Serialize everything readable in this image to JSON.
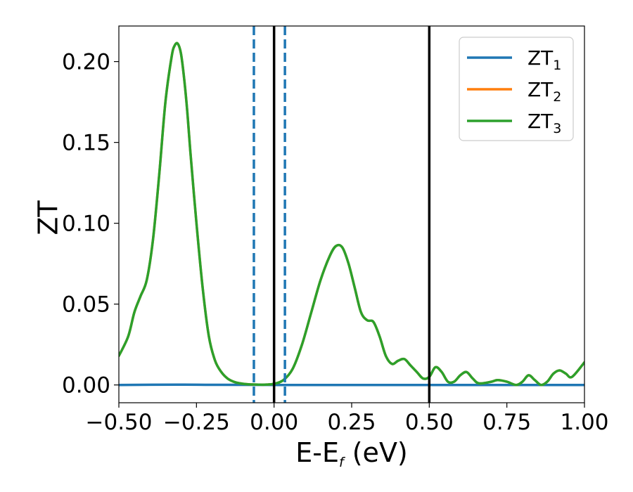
{
  "chart_data": {
    "type": "line",
    "title": "",
    "xlabel": {
      "main": "E-E",
      "sub": "f",
      "suffix": " (eV)"
    },
    "ylabel": "ZT",
    "xlim": [
      -0.5,
      1.0
    ],
    "ylim": [
      -0.011,
      0.222
    ],
    "grid": false,
    "legend_position": "top-right",
    "x_ticks": [
      {
        "value": -0.5,
        "label": "−0.50"
      },
      {
        "value": -0.25,
        "label": "−0.25"
      },
      {
        "value": 0.0,
        "label": "0.00"
      },
      {
        "value": 0.25,
        "label": "0.25"
      },
      {
        "value": 0.5,
        "label": "0.50"
      },
      {
        "value": 0.75,
        "label": "0.75"
      },
      {
        "value": 1.0,
        "label": "1.00"
      }
    ],
    "y_ticks": [
      {
        "value": 0.0,
        "label": "0.00"
      },
      {
        "value": 0.05,
        "label": "0.05"
      },
      {
        "value": 0.1,
        "label": "0.10"
      },
      {
        "value": 0.15,
        "label": "0.15"
      },
      {
        "value": 0.2,
        "label": "0.20"
      }
    ],
    "series": [
      {
        "name": "ZT",
        "sub": "1",
        "color": "#1f77b4",
        "x": [
          -0.5,
          -0.3,
          -0.2,
          0.0,
          0.5,
          1.0
        ],
        "y": [
          0.0,
          0.0002,
          0.0001,
          0.0,
          0.0,
          0.0
        ]
      },
      {
        "name": "ZT",
        "sub": "2",
        "color": "#ff7f0e",
        "x": [
          -0.5,
          -0.47,
          -0.45,
          -0.43,
          -0.41,
          -0.39,
          -0.37,
          -0.35,
          -0.33,
          -0.32,
          -0.31,
          -0.3,
          -0.29,
          -0.28,
          -0.27,
          -0.25,
          -0.23,
          -0.21,
          -0.19,
          -0.17,
          -0.15,
          -0.13,
          -0.11,
          -0.09,
          -0.07,
          -0.05,
          -0.03,
          0.0,
          0.03,
          0.06,
          0.09,
          0.12,
          0.15,
          0.18,
          0.2,
          0.22,
          0.24,
          0.26,
          0.28,
          0.3,
          0.32,
          0.34,
          0.36,
          0.38,
          0.4,
          0.42,
          0.44,
          0.46,
          0.48,
          0.5,
          0.52,
          0.54,
          0.56,
          0.58,
          0.6,
          0.62,
          0.64,
          0.66,
          0.7,
          0.72,
          0.75,
          0.78,
          0.8,
          0.82,
          0.84,
          0.86,
          0.88,
          0.9,
          0.92,
          0.94,
          0.96,
          1.0
        ],
        "y": [
          0.018,
          0.03,
          0.045,
          0.055,
          0.065,
          0.09,
          0.13,
          0.175,
          0.203,
          0.21,
          0.211,
          0.205,
          0.19,
          0.17,
          0.145,
          0.1,
          0.06,
          0.03,
          0.015,
          0.008,
          0.004,
          0.002,
          0.001,
          0.0005,
          0.0003,
          0.0002,
          0.0002,
          0.0007,
          0.003,
          0.01,
          0.025,
          0.045,
          0.065,
          0.08,
          0.086,
          0.085,
          0.075,
          0.06,
          0.045,
          0.04,
          0.039,
          0.03,
          0.018,
          0.013,
          0.015,
          0.016,
          0.012,
          0.008,
          0.004,
          0.005,
          0.011,
          0.008,
          0.002,
          0.002,
          0.006,
          0.008,
          0.004,
          0.001,
          0.002,
          0.003,
          0.002,
          0.0,
          0.002,
          0.006,
          0.003,
          0.0,
          0.002,
          0.007,
          0.009,
          0.007,
          0.005,
          0.014
        ]
      },
      {
        "name": "ZT",
        "sub": "3",
        "color": "#2ca02c",
        "x": [
          -0.5,
          -0.47,
          -0.45,
          -0.43,
          -0.41,
          -0.39,
          -0.37,
          -0.35,
          -0.33,
          -0.32,
          -0.31,
          -0.3,
          -0.29,
          -0.28,
          -0.27,
          -0.25,
          -0.23,
          -0.21,
          -0.19,
          -0.17,
          -0.15,
          -0.13,
          -0.11,
          -0.09,
          -0.07,
          -0.05,
          -0.03,
          0.0,
          0.03,
          0.06,
          0.09,
          0.12,
          0.15,
          0.18,
          0.2,
          0.22,
          0.24,
          0.26,
          0.28,
          0.3,
          0.32,
          0.34,
          0.36,
          0.38,
          0.4,
          0.42,
          0.44,
          0.46,
          0.48,
          0.5,
          0.52,
          0.54,
          0.56,
          0.58,
          0.6,
          0.62,
          0.64,
          0.66,
          0.7,
          0.72,
          0.75,
          0.78,
          0.8,
          0.82,
          0.84,
          0.86,
          0.88,
          0.9,
          0.92,
          0.94,
          0.96,
          1.0
        ],
        "y": [
          0.018,
          0.03,
          0.045,
          0.055,
          0.065,
          0.09,
          0.13,
          0.175,
          0.203,
          0.21,
          0.211,
          0.205,
          0.19,
          0.17,
          0.145,
          0.1,
          0.06,
          0.03,
          0.015,
          0.008,
          0.004,
          0.002,
          0.001,
          0.0005,
          0.0003,
          0.0002,
          0.0002,
          0.0007,
          0.003,
          0.01,
          0.025,
          0.045,
          0.065,
          0.08,
          0.086,
          0.085,
          0.075,
          0.06,
          0.045,
          0.04,
          0.039,
          0.03,
          0.018,
          0.013,
          0.015,
          0.016,
          0.012,
          0.008,
          0.004,
          0.005,
          0.011,
          0.008,
          0.002,
          0.002,
          0.006,
          0.008,
          0.004,
          0.001,
          0.002,
          0.003,
          0.002,
          0.0,
          0.002,
          0.006,
          0.003,
          0.0,
          0.002,
          0.007,
          0.009,
          0.007,
          0.005,
          0.014
        ]
      }
    ],
    "vlines": [
      {
        "x": -0.065,
        "style": "dashed",
        "color": "#1f77b4"
      },
      {
        "x": 0.035,
        "style": "dashed",
        "color": "#1f77b4"
      },
      {
        "x": 0.0,
        "style": "solid",
        "color": "#000000"
      },
      {
        "x": 0.5,
        "style": "solid",
        "color": "#000000"
      }
    ]
  }
}
